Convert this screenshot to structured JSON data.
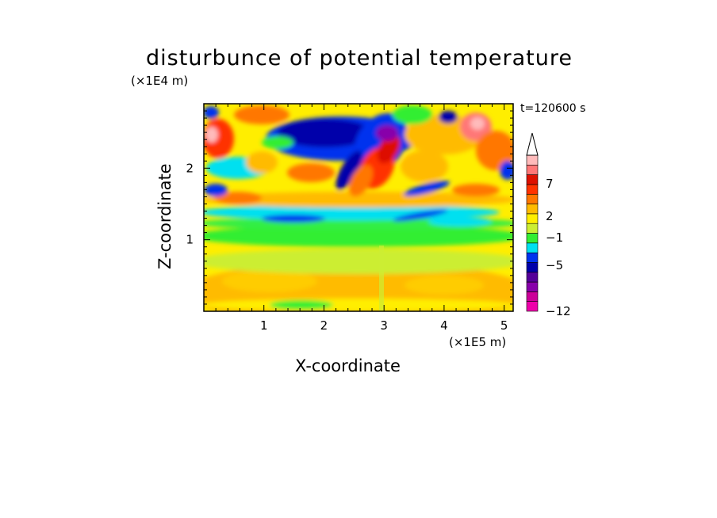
{
  "chart_data": {
    "type": "heatmap",
    "title": "disturbunce of potential temperature",
    "xlabel": "X-coordinate",
    "ylabel": "Z-coordinate",
    "x_unit": "(×1E5 m)",
    "y_unit": "(×1E4 m)",
    "annotation": "t=120600 s",
    "xlim": [
      0,
      5.15
    ],
    "ylim": [
      0,
      2.9
    ],
    "x_ticks": [
      "1",
      "2",
      "3",
      "4",
      "5"
    ],
    "y_ticks": [
      "1",
      "2"
    ],
    "colorbar": {
      "tick_labels": [
        "7",
        "2",
        "−1",
        "−5",
        "−12"
      ],
      "colors": [
        "#ee00aa",
        "#cc0099",
        "#8800aa",
        "#550099",
        "#0000aa",
        "#0033ee",
        "#00e0f0",
        "#33ee33",
        "#ccee33",
        "#ffee00",
        "#ffbb00",
        "#ff7700",
        "#ff3300",
        "#dd1100",
        "#ff7777",
        "#ffbbbb"
      ],
      "extend_max": true
    }
  }
}
